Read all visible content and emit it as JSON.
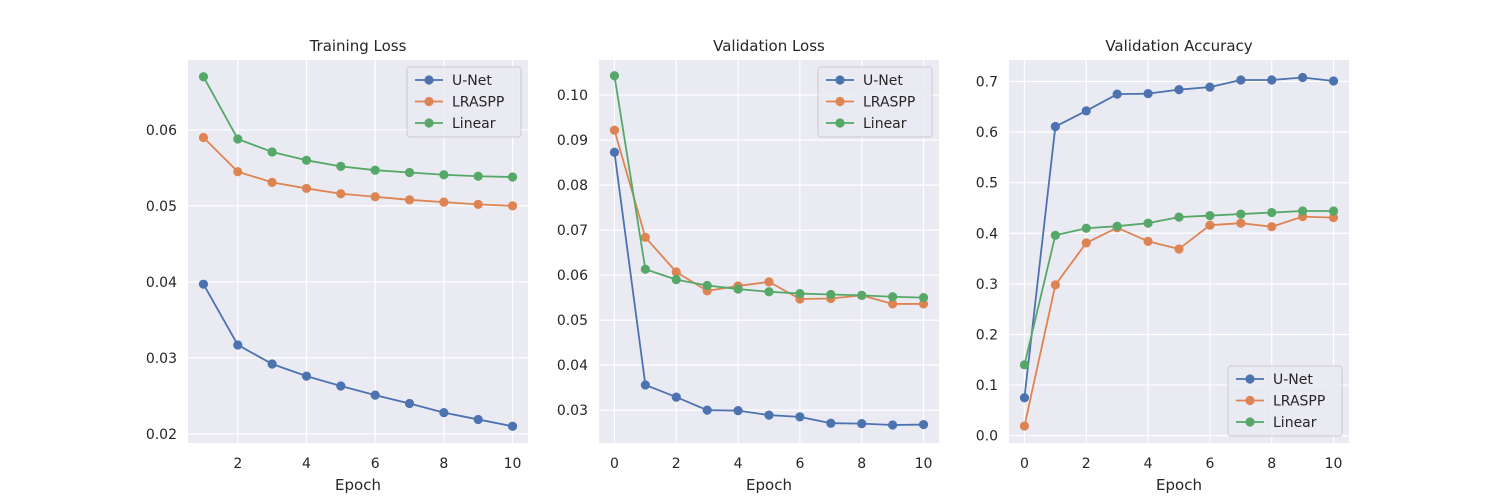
{
  "style": {
    "background": "#ffffff",
    "axes_background": "#eaeaf2",
    "grid_color": "#ffffff",
    "text_color": "#262626",
    "series_colors": {
      "U-Net": "#4c72b0",
      "LRASPP": "#dd8452",
      "Linear": "#55a868"
    }
  },
  "chart_data": [
    {
      "type": "line",
      "title": "Training Loss",
      "xlabel": "Epoch",
      "ylabel": "",
      "grid": true,
      "legend_position": "upper right",
      "xlim": [
        0.55,
        10.45
      ],
      "ylim": [
        0.0188,
        0.0692
      ],
      "xticks": [
        2,
        4,
        6,
        8,
        10
      ],
      "yticks": [
        0.02,
        0.03,
        0.04,
        0.05,
        0.06
      ],
      "ytick_labels": [
        "0.02",
        "0.03",
        "0.04",
        "0.05",
        "0.06"
      ],
      "x": [
        1,
        2,
        3,
        4,
        5,
        6,
        7,
        8,
        9,
        10
      ],
      "series": [
        {
          "name": "U-Net",
          "values": [
            0.0397,
            0.0317,
            0.0292,
            0.0276,
            0.0263,
            0.0251,
            0.024,
            0.0228,
            0.0219,
            0.021
          ]
        },
        {
          "name": "LRASPP",
          "values": [
            0.059,
            0.0545,
            0.0531,
            0.0523,
            0.0516,
            0.0512,
            0.0508,
            0.0505,
            0.0502,
            0.05
          ]
        },
        {
          "name": "Linear",
          "values": [
            0.067,
            0.0588,
            0.0571,
            0.056,
            0.0552,
            0.0547,
            0.0544,
            0.0541,
            0.0539,
            0.0538
          ]
        }
      ]
    },
    {
      "type": "line",
      "title": "Validation Loss",
      "xlabel": "Epoch",
      "ylabel": "",
      "grid": true,
      "legend_position": "upper right",
      "xlim": [
        -0.5,
        10.5
      ],
      "ylim": [
        0.0227,
        0.1078
      ],
      "xticks": [
        0,
        2,
        4,
        6,
        8,
        10
      ],
      "yticks": [
        0.03,
        0.04,
        0.05,
        0.06,
        0.07,
        0.08,
        0.09,
        0.1
      ],
      "ytick_labels": [
        "0.03",
        "0.04",
        "0.05",
        "0.06",
        "0.07",
        "0.08",
        "0.09",
        "0.10"
      ],
      "x": [
        0,
        1,
        2,
        3,
        4,
        5,
        6,
        7,
        8,
        9,
        10
      ],
      "series": [
        {
          "name": "U-Net",
          "values": [
            0.0873,
            0.0356,
            0.0329,
            0.03,
            0.0299,
            0.0289,
            0.0285,
            0.0271,
            0.027,
            0.0267,
            0.0268
          ]
        },
        {
          "name": "LRASPP",
          "values": [
            0.0922,
            0.0684,
            0.0607,
            0.0565,
            0.0576,
            0.0585,
            0.0547,
            0.0548,
            0.0555,
            0.0536,
            0.0536
          ]
        },
        {
          "name": "Linear",
          "values": [
            0.1043,
            0.0613,
            0.059,
            0.0577,
            0.0569,
            0.0563,
            0.0559,
            0.0557,
            0.0555,
            0.0552,
            0.055
          ]
        }
      ]
    },
    {
      "type": "line",
      "title": "Validation Accuracy",
      "xlabel": "Epoch",
      "ylabel": "",
      "grid": true,
      "legend_position": "lower right",
      "xlim": [
        -0.5,
        10.5
      ],
      "ylim": [
        -0.0145,
        0.7425
      ],
      "xticks": [
        0,
        2,
        4,
        6,
        8,
        10
      ],
      "yticks": [
        0.0,
        0.1,
        0.2,
        0.3,
        0.4,
        0.5,
        0.6,
        0.7
      ],
      "ytick_labels": [
        "0.0",
        "0.1",
        "0.2",
        "0.3",
        "0.4",
        "0.5",
        "0.6",
        "0.7"
      ],
      "x": [
        0,
        1,
        2,
        3,
        4,
        5,
        6,
        7,
        8,
        9,
        10
      ],
      "series": [
        {
          "name": "U-Net",
          "values": [
            0.075,
            0.611,
            0.642,
            0.675,
            0.676,
            0.684,
            0.689,
            0.703,
            0.703,
            0.708,
            0.701
          ]
        },
        {
          "name": "LRASPP",
          "values": [
            0.019,
            0.298,
            0.381,
            0.411,
            0.384,
            0.369,
            0.416,
            0.42,
            0.413,
            0.433,
            0.431
          ]
        },
        {
          "name": "Linear",
          "values": [
            0.14,
            0.396,
            0.41,
            0.414,
            0.42,
            0.432,
            0.435,
            0.438,
            0.441,
            0.444,
            0.444
          ]
        }
      ]
    }
  ]
}
